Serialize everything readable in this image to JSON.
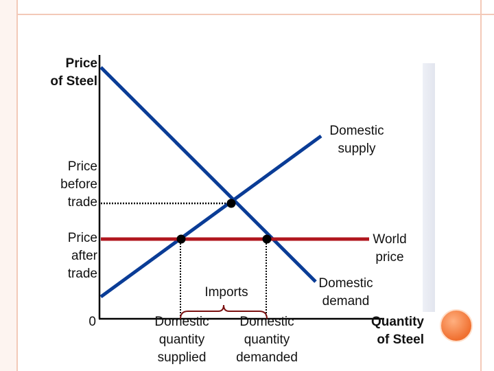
{
  "labels": {
    "y_axis_title": "Price\nof Steel",
    "x_axis_title": "Quantity\nof Steel",
    "domestic_supply": "Domestic\nsupply",
    "domestic_demand": "Domestic\ndemand",
    "world_price": "World\nprice",
    "price_before_trade": "Price\nbefore\ntrade",
    "price_after_trade": "Price\nafter\ntrade",
    "origin": "0",
    "imports": "Imports",
    "qty_supplied": "Domestic\nquantity\nsupplied",
    "qty_demanded": "Domestic\nquantity\ndemanded"
  },
  "colors": {
    "curve": "#0a3c96",
    "world_price_line": "#b0161e",
    "axis": "#000000",
    "brace": "#7a1010",
    "frame": "#f3c9b8",
    "orb": "#f07030"
  }
}
